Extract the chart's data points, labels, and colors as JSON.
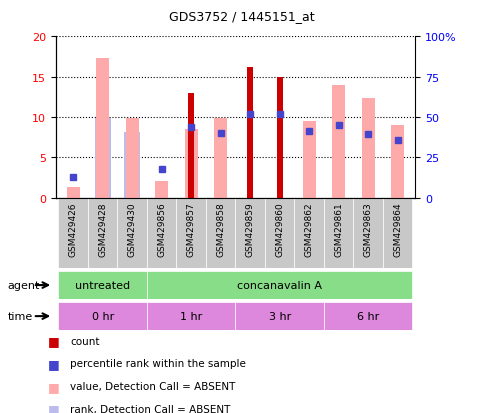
{
  "title": "GDS3752 / 1445151_at",
  "samples": [
    "GSM429426",
    "GSM429428",
    "GSM429430",
    "GSM429856",
    "GSM429857",
    "GSM429858",
    "GSM429859",
    "GSM429860",
    "GSM429862",
    "GSM429861",
    "GSM429863",
    "GSM429864"
  ],
  "count_values": [
    null,
    null,
    null,
    null,
    13.0,
    null,
    16.2,
    15.0,
    null,
    null,
    null,
    null
  ],
  "pink_bar_heights": [
    1.3,
    17.3,
    9.9,
    2.1,
    8.5,
    9.9,
    null,
    null,
    9.5,
    14.0,
    12.3,
    9.0
  ],
  "light_blue_bar_heights": [
    null,
    9.9,
    8.2,
    null,
    null,
    null,
    null,
    null,
    null,
    null,
    null,
    null
  ],
  "blue_square_y": [
    2.6,
    null,
    null,
    3.5,
    8.7,
    8.0,
    10.4,
    10.4,
    8.3,
    9.0,
    7.9,
    7.2
  ],
  "ylim_left": [
    0,
    20
  ],
  "ylim_right": [
    0,
    100
  ],
  "yticks_left": [
    0,
    5,
    10,
    15,
    20
  ],
  "yticks_right": [
    0,
    25,
    50,
    75,
    100
  ],
  "ytick_labels_right": [
    "0",
    "25",
    "50",
    "75",
    "100%"
  ],
  "color_count": "#cc0000",
  "color_pink_bar": "#ffaaaa",
  "color_blue_square": "#4444cc",
  "color_light_blue_bar": "#bbbbee",
  "color_plot_bg": "#ffffff",
  "color_xtick_bg": "#c8c8c8",
  "agent_groups": [
    {
      "label": "untreated",
      "span": [
        0,
        3
      ],
      "color": "#88dd88"
    },
    {
      "label": "concanavalin A",
      "span": [
        3,
        12
      ],
      "color": "#88dd88"
    }
  ],
  "time_groups": [
    {
      "label": "0 hr",
      "span": [
        0,
        3
      ],
      "color": "#dd88dd"
    },
    {
      "label": "1 hr",
      "span": [
        3,
        6
      ],
      "color": "#dd88dd"
    },
    {
      "label": "3 hr",
      "span": [
        6,
        9
      ],
      "color": "#dd88dd"
    },
    {
      "label": "6 hr",
      "span": [
        9,
        12
      ],
      "color": "#dd88dd"
    }
  ],
  "legend_items": [
    {
      "color": "#cc0000",
      "label": "count"
    },
    {
      "color": "#4444cc",
      "label": "percentile rank within the sample"
    },
    {
      "color": "#ffaaaa",
      "label": "value, Detection Call = ABSENT"
    },
    {
      "color": "#bbbbee",
      "label": "rank, Detection Call = ABSENT"
    }
  ]
}
